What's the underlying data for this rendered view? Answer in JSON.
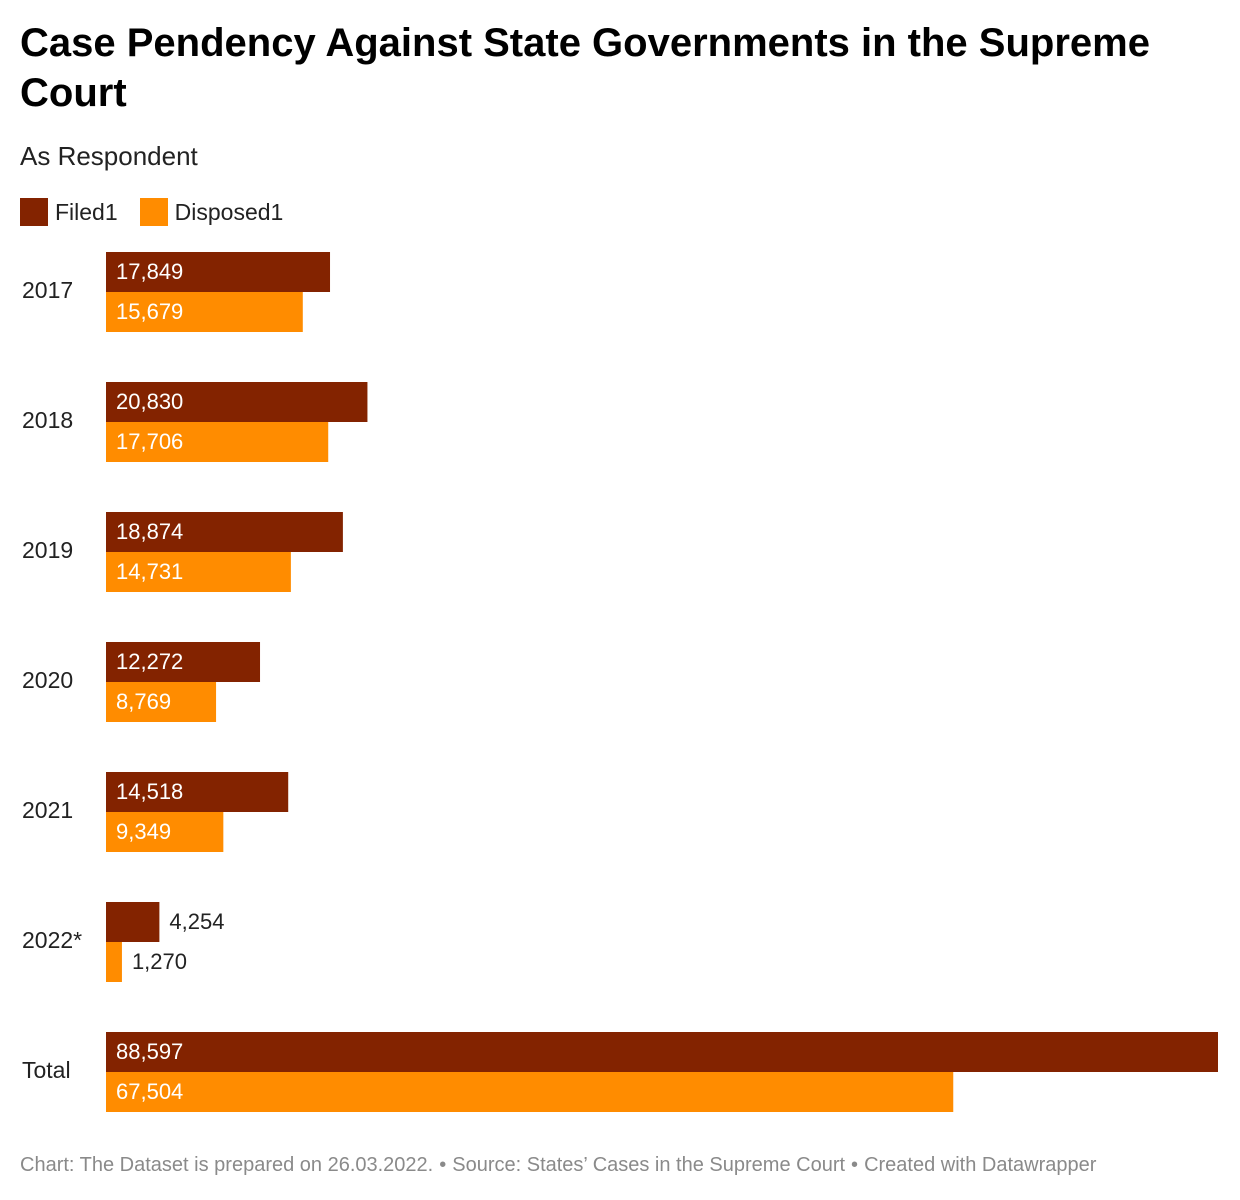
{
  "header": {
    "title": "Case Pendency Against State Governments in the Supreme Court",
    "subtitle": "As Respondent"
  },
  "legend": [
    {
      "label": "Filed1",
      "color": "#832300"
    },
    {
      "label": "Disposed1",
      "color": "#ff8c00"
    }
  ],
  "chart_data": {
    "type": "bar",
    "orientation": "horizontal",
    "title": "Case Pendency Against State Governments in the Supreme Court",
    "subtitle": "As Respondent",
    "categories": [
      "2017",
      "2018",
      "2019",
      "2020",
      "2021",
      "2022*",
      "Total"
    ],
    "series": [
      {
        "name": "Filed1",
        "color": "#832300",
        "values": [
          17849,
          20830,
          18874,
          12272,
          14518,
          4254,
          88597
        ]
      },
      {
        "name": "Disposed1",
        "color": "#ff8c00",
        "values": [
          15679,
          17706,
          14731,
          8769,
          9349,
          1270,
          67504
        ]
      }
    ],
    "xlim": [
      0,
      88597
    ],
    "grid": false,
    "legend_position": "top-left",
    "data_labels": true
  },
  "footer": {
    "chart_note": "Chart: The Dataset is prepared on 26.03.2022.",
    "source": "Source: States’ Cases in the Supreme Court",
    "credit": "Created with Datawrapper",
    "separator": "•"
  }
}
